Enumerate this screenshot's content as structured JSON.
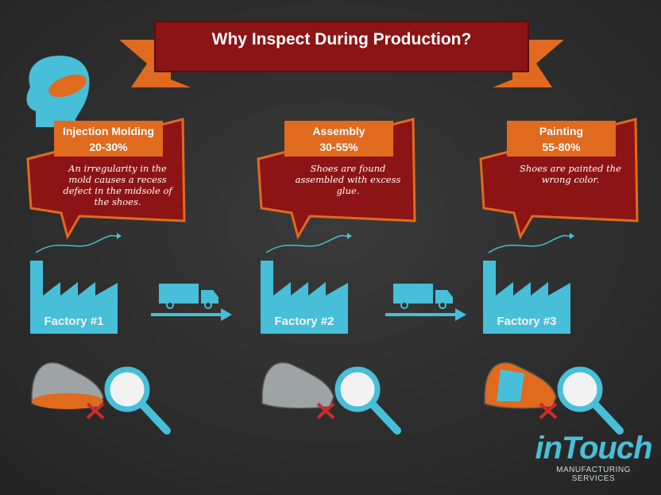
{
  "header": {
    "title": "Why Inspect During Production?"
  },
  "stages": [
    {
      "name": "Injection Molding",
      "range": "20-30%",
      "description": "An irregularity in the mold causes a recess defect in the midsole of the shoes.",
      "factory": "Factory #1"
    },
    {
      "name": "Assembly",
      "range": "30-55%",
      "description": "Shoes are found assembled with excess glue.",
      "factory": "Factory #2"
    },
    {
      "name": "Painting",
      "range": "55-80%",
      "description": "Shoes are painted the wrong color.",
      "factory": "Factory #3"
    }
  ],
  "logo": {
    "name": "inTouch",
    "tagline": "MANUFACTURING SERVICES"
  }
}
